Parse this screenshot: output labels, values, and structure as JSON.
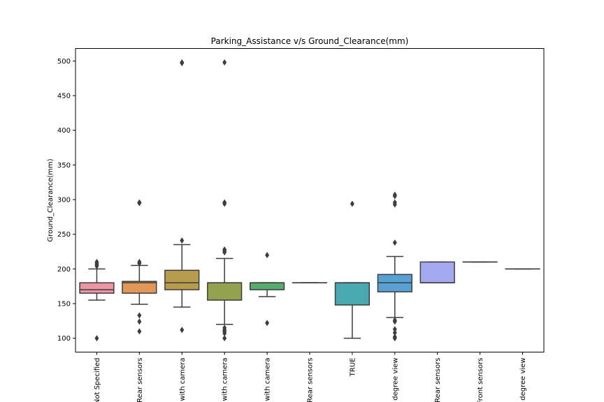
{
  "chart_data": {
    "type": "box",
    "title": "Parking_Assistance v/s Ground_Clearance(mm)",
    "xlabel": "",
    "ylabel": "Ground_Clearance(mm)",
    "ylim": [
      80,
      518
    ],
    "yticks": [
      100,
      150,
      200,
      250,
      300,
      350,
      400,
      450,
      500
    ],
    "legend": "none",
    "grid": false,
    "categories": [
      "Not Specified",
      "Rear sensors",
      "with camera",
      "with camera",
      "with camera",
      "Rear sensors",
      "TRUE",
      "degree view",
      "Rear sensors",
      "Front sensors",
      "degree view"
    ],
    "colors": [
      "#ea96a3",
      "#e29658",
      "#b79c4e",
      "#93a24e",
      "#58ac6e",
      "#5ea997",
      "#4aa8b0",
      "#57a1d4",
      "#a5aaf0",
      "#d69ff1",
      "#f08fc8"
    ],
    "boxes": [
      {
        "whisker_low": 155,
        "q1": 165,
        "median": 170,
        "q3": 180,
        "whisker_high": 200,
        "outliers": [
          100,
          204,
          206,
          208,
          210
        ]
      },
      {
        "whisker_low": 149,
        "q1": 165,
        "median": 180,
        "q3": 182,
        "whisker_high": 205,
        "outliers": [
          110,
          124,
          133,
          208,
          210,
          295,
          296
        ]
      },
      {
        "whisker_low": 145,
        "q1": 170,
        "median": 180,
        "q3": 198,
        "whisker_high": 235,
        "outliers": [
          112,
          241,
          497,
          498
        ]
      },
      {
        "whisker_low": 120,
        "q1": 155,
        "median": 180,
        "q3": 180,
        "whisker_high": 215,
        "outliers": [
          100,
          107,
          110,
          112,
          115,
          224,
          226,
          228,
          294,
          296,
          498
        ]
      },
      {
        "whisker_low": 160,
        "q1": 170,
        "median": 180,
        "q3": 180,
        "whisker_high": 180,
        "outliers": [
          122,
          220
        ]
      },
      {
        "whisker_low": 180,
        "q1": 180,
        "median": 180,
        "q3": 180,
        "whisker_high": 180,
        "outliers": []
      },
      {
        "whisker_low": 100,
        "q1": 148,
        "median": 180,
        "q3": 180,
        "whisker_high": 180,
        "outliers": [
          294
        ]
      },
      {
        "whisker_low": 130,
        "q1": 167,
        "median": 180,
        "q3": 192,
        "whisker_high": 218,
        "outliers": [
          100,
          102,
          108,
          113,
          124,
          126,
          238,
          293,
          296,
          305,
          307
        ]
      },
      {
        "whisker_low": 180,
        "q1": 180,
        "median": 180,
        "q3": 210,
        "whisker_high": 210,
        "outliers": []
      },
      {
        "whisker_low": 210,
        "q1": 210,
        "median": 210,
        "q3": 210,
        "whisker_high": 210,
        "outliers": []
      },
      {
        "whisker_low": 200,
        "q1": 200,
        "median": 200,
        "q3": 200,
        "whisker_high": 200,
        "outliers": []
      }
    ]
  }
}
